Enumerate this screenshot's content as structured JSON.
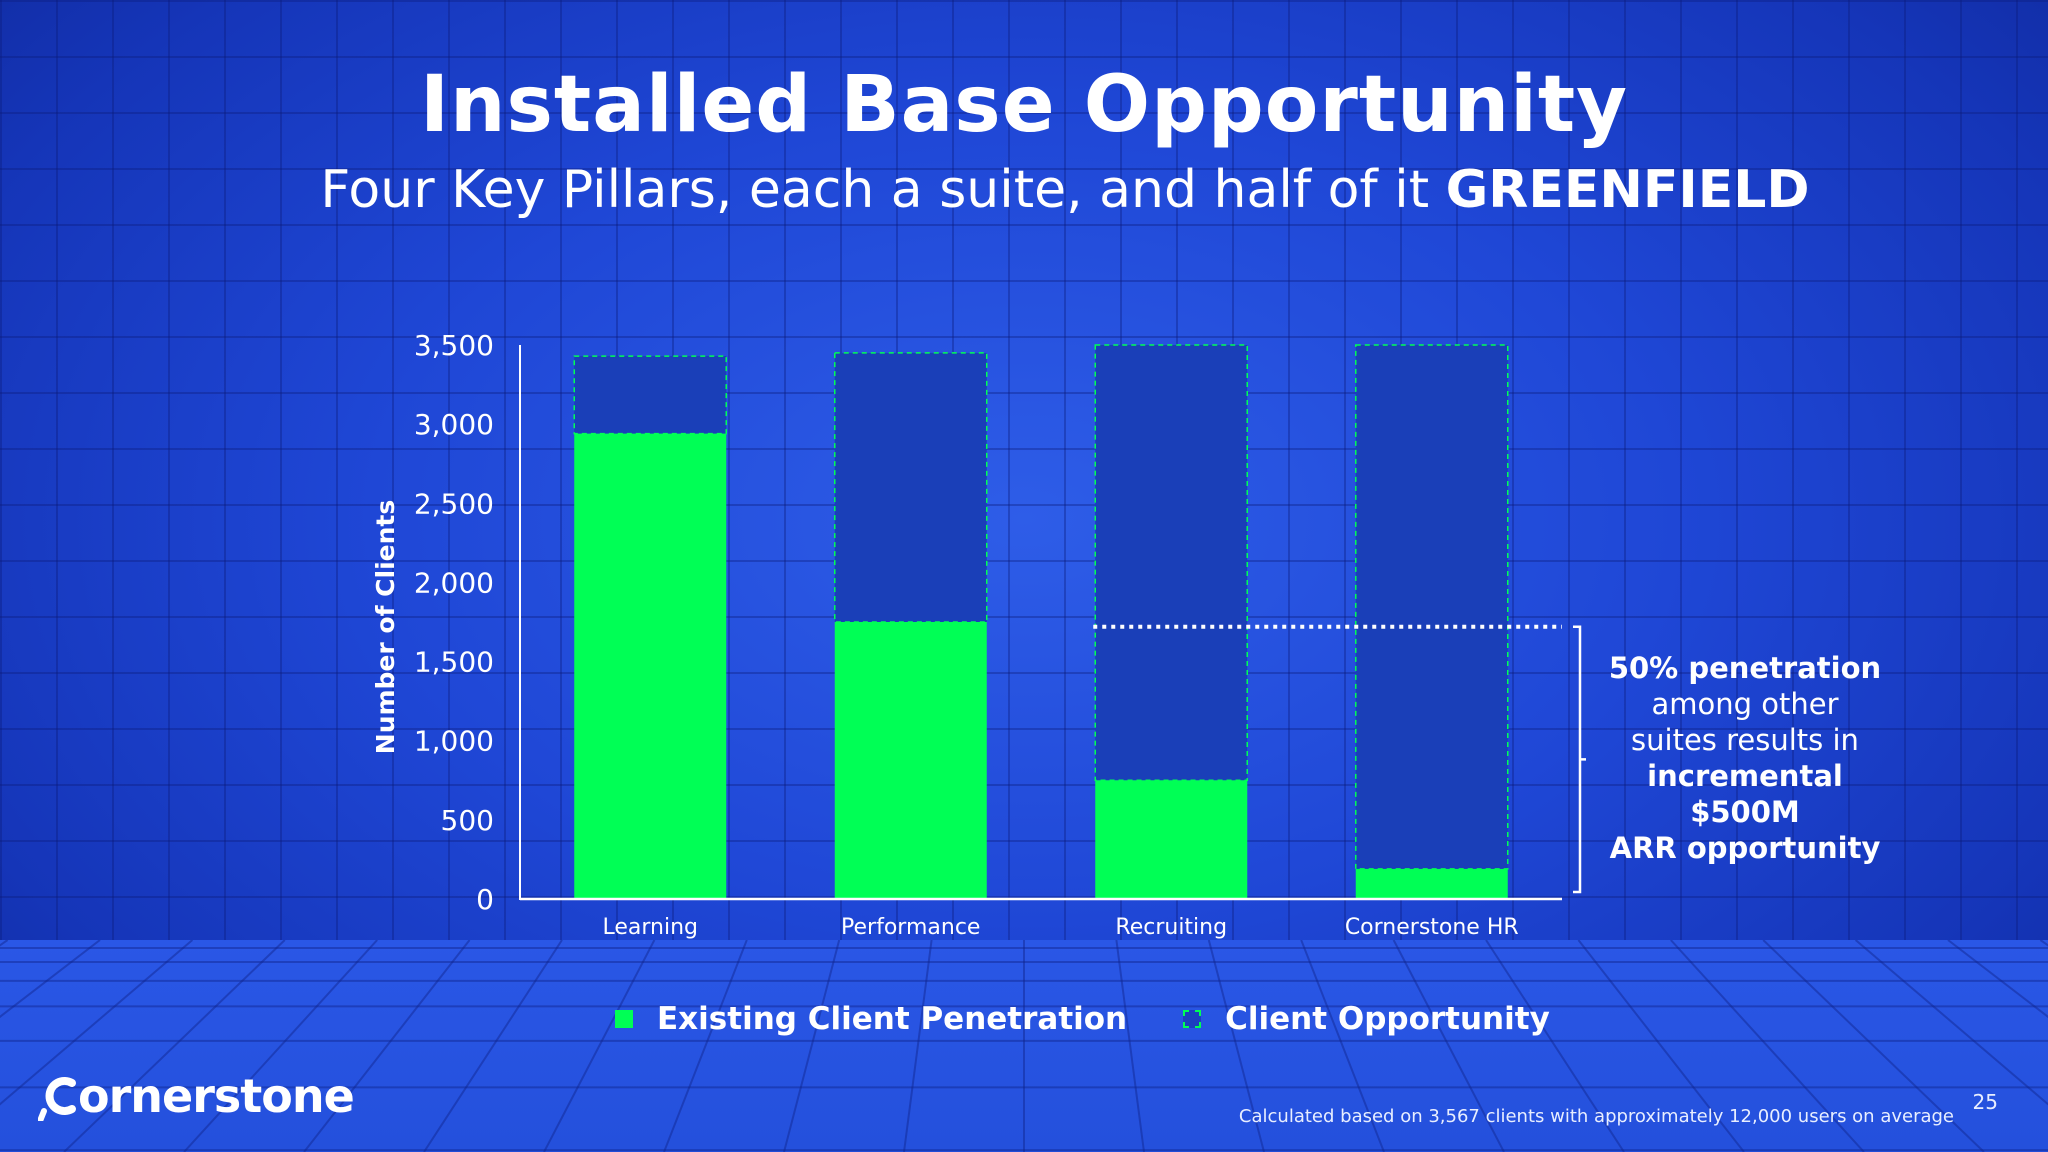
{
  "slide": {
    "title": "Installed Base Opportunity",
    "subtitle_plain": "Four Key Pillars, each a suite, and half of it ",
    "subtitle_bold": "GREENFIELD",
    "page_number": "25",
    "footnote": "Calculated based on 3,567 clients with approximately 12,000 users on average",
    "logo_text": "ornerstone",
    "logo_icon": "cornerstone-c-logo-icon"
  },
  "annotation": {
    "line1": "50% penetration",
    "line2": "among other",
    "line3": "suites results in",
    "line4": "incremental",
    "line5": "$500M",
    "line6": "ARR opportunity"
  },
  "legend": {
    "existing": "Existing Client Penetration",
    "opportunity": "Client Opportunity"
  },
  "chart_data": {
    "type": "bar",
    "stacked": true,
    "categories": [
      "Learning",
      "Performance",
      "Recruiting",
      "Cornerstone HR"
    ],
    "series": [
      {
        "name": "Existing Client Penetration",
        "values": [
          2940,
          1750,
          750,
          190
        ]
      },
      {
        "name": "Client Opportunity",
        "values": [
          490,
          1700,
          2750,
          3310
        ]
      }
    ],
    "totals": [
      3430,
      3450,
      3500,
      3500
    ],
    "reference_line": {
      "value": 1720,
      "style": "dotted"
    },
    "ylabel": "Number of Clients",
    "xlabel": "",
    "ylim": [
      0,
      3500
    ],
    "yticks": [
      "0",
      "500",
      "1,000",
      "1,500",
      "2,000",
      "2,500",
      "3,000",
      "3,500"
    ],
    "ytick_values": [
      0,
      500,
      1000,
      1500,
      2000,
      2500,
      3000,
      3500
    ],
    "grid": false,
    "legend_position": "bottom",
    "colors": {
      "existing": "#00ff55",
      "opportunity": "#1a3fb8",
      "opportunity_border": "#00ff55",
      "reference": "#ffffff"
    }
  }
}
